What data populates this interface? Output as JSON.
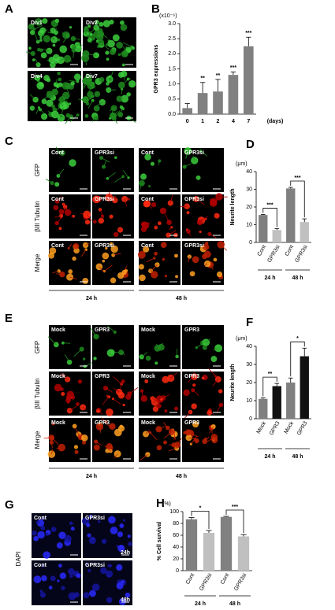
{
  "figure": {
    "panel_a": {
      "letter": "A",
      "labels": [
        "Div1",
        "Div2",
        "Div4",
        "Div7"
      ]
    },
    "panel_c": {
      "letter": "C",
      "rows": [
        "GFP",
        "βIII Tubulin",
        "Merge"
      ],
      "columns": [
        "Cont",
        "GPR3si",
        "Cont",
        "GPR3si"
      ],
      "times": [
        "24 h",
        "48 h"
      ]
    },
    "panel_e": {
      "letter": "E",
      "rows": [
        "GFP",
        "βIII Tubulin",
        "Merge"
      ],
      "columns": [
        "Mock",
        "GPR3",
        "Mock",
        "GPR3"
      ],
      "times": [
        "24 h",
        "48 h"
      ]
    },
    "panel_g": {
      "letter": "G",
      "stain": "DAPI",
      "columns": [
        "Cont",
        "GPR3si"
      ],
      "times": [
        "24h",
        "48h"
      ]
    }
  },
  "chart_data": [
    {
      "type": "bar",
      "letter": "B",
      "y_label": "GPR3 expressions",
      "unit": "(x10⁻⁶)",
      "x_label": "(days)",
      "categories": [
        "0",
        "1",
        "2",
        "4",
        "7"
      ],
      "values": [
        0.2,
        0.7,
        0.75,
        1.3,
        2.25
      ],
      "errors": [
        0.15,
        0.35,
        0.4,
        0.1,
        0.3
      ],
      "annotations": [
        null,
        "**",
        "**",
        "***",
        "***"
      ],
      "colors": [
        "#808080",
        "#808080",
        "#808080",
        "#808080",
        "#808080"
      ],
      "ylim": [
        0,
        3
      ],
      "yticks": [
        {
          "value": 0,
          "label": "0.0"
        },
        {
          "value": 0.5,
          "label": "0.5"
        },
        {
          "value": 1,
          "label": "1.0"
        },
        {
          "value": 1.5,
          "label": "1.5"
        },
        {
          "value": 2,
          "label": "2.0"
        },
        {
          "value": 2.5,
          "label": "2.5"
        },
        {
          "value": 3,
          "label": "3.0"
        }
      ]
    },
    {
      "type": "bar",
      "letter": "D",
      "y_label": "Neurite length",
      "unit": "(μm)",
      "categories": [
        "Cont",
        "GPR3si",
        "Cont",
        "GPR3si"
      ],
      "values": [
        15.5,
        7,
        30.5,
        11.5
      ],
      "errors": [
        0.3,
        0.8,
        0.6,
        1.8
      ],
      "colors": [
        "#808080",
        "#c0c0c0",
        "#808080",
        "#c0c0c0"
      ],
      "groups": [
        "24 h",
        "48 h"
      ],
      "significance": [
        "***",
        "***"
      ],
      "ylim": [
        0,
        40
      ],
      "yticks": [
        0,
        10,
        20,
        30,
        40
      ]
    },
    {
      "type": "bar",
      "letter": "F",
      "y_label": "Neurite length",
      "unit": "(μm)",
      "categories": [
        "Mock",
        "GPR3",
        "Mock",
        "GPR3"
      ],
      "values": [
        11,
        18,
        20,
        34.5
      ],
      "errors": [
        0.5,
        1.5,
        2.5,
        4.5
      ],
      "colors": [
        "#808080",
        "#111111",
        "#808080",
        "#111111"
      ],
      "groups": [
        "24 h",
        "48 h"
      ],
      "significance": [
        "**",
        "*"
      ],
      "ylim": [
        0,
        40
      ],
      "yticks": [
        0,
        10,
        20,
        30,
        40
      ]
    },
    {
      "type": "bar",
      "letter": "H",
      "y_label": "% Cell survival",
      "unit": "(%)",
      "categories": [
        "Cont",
        "GPR3si",
        "Cont",
        "GPR3si"
      ],
      "values": [
        87,
        64,
        91,
        58
      ],
      "errors": [
        3,
        4,
        1,
        3
      ],
      "colors": [
        "#808080",
        "#c0c0c0",
        "#808080",
        "#c0c0c0"
      ],
      "groups": [
        "24 h",
        "48 h"
      ],
      "significance": [
        "*",
        "***"
      ],
      "ylim": [
        0,
        100
      ],
      "yticks": [
        0,
        20,
        40,
        60,
        80,
        100
      ]
    }
  ]
}
